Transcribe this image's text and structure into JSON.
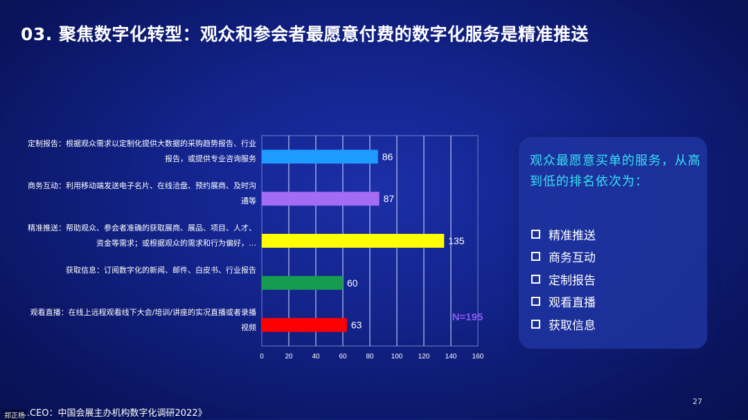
{
  "title": "03. 聚焦数字化转型：观众和参会者最愿意付费的数字化服务是精准推送",
  "chart_data": {
    "type": "bar",
    "orientation": "horizontal",
    "categories": [
      "定制报告：根据观众需求以定制化提供大数据的采购趋势报告、行业报告，或提供专业咨询服务",
      "商务互动：利用移动端发送电子名片、在线洽盘、预约展商、及时沟通等",
      "精准推送：帮助观众、参会者准确的获取展商、展品、项目、人才、资金等需求；或根据观众的需求和行为偏好，…",
      "获取信息：订阅数字化的新闻、邮件、白皮书、行业报告",
      "观看直播：在线上远程观看线下大会/培训/讲座的实况直播或者录播视频"
    ],
    "values": [
      86,
      87,
      135,
      60,
      63
    ],
    "colors": [
      "#1e9bff",
      "#a46cf2",
      "#ffff00",
      "#169c4e",
      "#ff0000"
    ],
    "xlim": [
      0,
      160
    ],
    "xticks": [
      "0",
      "20",
      "40",
      "60",
      "80",
      "100",
      "120",
      "140",
      "160"
    ],
    "grid": true,
    "annotation": "N=195",
    "annotation_color": "#8a5cf0"
  },
  "panel": {
    "heading": "观众最愿意买单的服务，从高到低的排名依次为：",
    "items": [
      "精准推送",
      "商务互动",
      "定制报告",
      "观看直播",
      "获取信息"
    ]
  },
  "source": "…CEO：中国会展主办机构数字化调研2022》",
  "page_number": "27",
  "watermark": "郑正杨"
}
